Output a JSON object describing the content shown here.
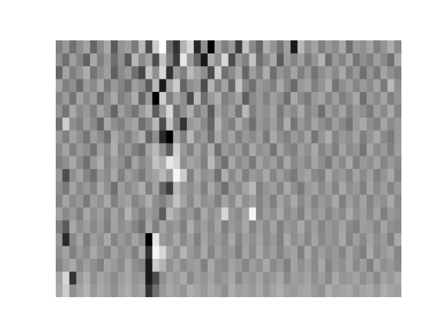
{
  "chart_data": {
    "type": "heatmap",
    "tick_labels": false,
    "grid": false,
    "cells": [
      [
        55,
        60,
        52,
        58,
        62,
        50,
        57,
        63,
        48,
        59,
        61,
        54,
        66,
        45,
        70,
        80,
        52,
        40,
        65,
        72,
        38,
        58,
        30,
        62,
        55,
        60,
        42,
        68,
        57,
        50,
        64,
        59,
        53,
        61,
        35,
        66,
        58,
        62,
        55,
        60,
        57,
        63,
        52,
        60,
        58,
        62,
        55,
        59,
        64,
        57
      ],
      [
        58,
        52,
        61,
        56,
        49,
        63,
        55,
        60,
        52,
        58,
        48,
        66,
        57,
        62,
        45,
        68,
        55,
        42,
        75,
        60,
        50,
        35,
        64,
        58,
        72,
        45,
        60,
        55,
        68,
        52,
        57,
        63,
        48,
        60,
        56,
        61,
        54,
        59,
        65,
        52,
        60,
        56,
        62,
        53,
        58,
        55,
        61,
        57,
        52,
        63
      ],
      [
        50,
        62,
        55,
        59,
        64,
        53,
        58,
        61,
        49,
        57,
        60,
        52,
        44,
        68,
        58,
        72,
        40,
        60,
        55,
        66,
        62,
        58,
        45,
        70,
        52,
        57,
        63,
        50,
        61,
        55,
        64,
        52,
        59,
        56,
        62,
        55,
        60,
        53,
        58,
        61,
        57,
        63,
        55,
        60,
        52,
        59,
        54,
        62,
        58,
        55
      ],
      [
        62,
        55,
        58,
        51,
        60,
        57,
        63,
        54,
        60,
        56,
        52,
        61,
        58,
        48,
        66,
        35,
        62,
        70,
        50,
        58,
        60,
        45,
        65,
        55,
        62,
        50,
        68,
        57,
        52,
        60,
        58,
        55,
        63,
        57,
        51,
        60,
        62,
        55,
        59,
        64,
        53,
        58,
        61,
        56,
        60,
        57,
        62,
        54,
        66,
        58
      ],
      [
        56,
        60,
        53,
        62,
        57,
        61,
        52,
        58,
        63,
        55,
        58,
        64,
        50,
        60,
        30,
        70,
        55,
        62,
        58,
        45,
        66,
        52,
        60,
        64,
        55,
        58,
        62,
        49,
        57,
        60,
        55,
        61,
        58,
        52,
        63,
        57,
        54,
        60,
        62,
        56,
        61,
        55,
        58,
        63,
        52,
        60,
        57,
        62,
        55,
        59
      ],
      [
        59,
        53,
        63,
        57,
        60,
        55,
        62,
        58,
        50,
        61,
        57,
        53,
        60,
        65,
        48,
        60,
        72,
        52,
        58,
        64,
        55,
        60,
        48,
        62,
        57,
        61,
        53,
        66,
        55,
        60,
        58,
        62,
        54,
        60,
        57,
        63,
        56,
        59,
        52,
        61,
        57,
        62,
        55,
        60,
        58,
        54,
        61,
        57,
        63,
        56
      ],
      [
        52,
        70,
        58,
        55,
        61,
        57,
        50,
        63,
        58,
        55,
        60,
        62,
        52,
        57,
        66,
        45,
        68,
        55,
        40,
        60,
        62,
        57,
        50,
        65,
        58,
        55,
        63,
        58,
        52,
        60,
        57,
        61,
        55,
        64,
        53,
        60,
        56,
        62,
        58,
        55,
        61,
        57,
        53,
        60,
        63,
        58,
        55,
        62,
        57,
        60
      ],
      [
        60,
        55,
        62,
        58,
        53,
        61,
        57,
        52,
        63,
        59,
        55,
        60,
        64,
        50,
        58,
        38,
        30,
        62,
        55,
        66,
        57,
        60,
        52,
        63,
        58,
        62,
        55,
        60,
        57,
        61,
        54,
        63,
        58,
        55,
        60,
        57,
        62,
        53,
        59,
        64,
        56,
        60,
        58,
        62,
        55,
        59,
        63,
        57,
        54,
        60
      ],
      [
        57,
        62,
        55,
        60,
        58,
        53,
        61,
        57,
        64,
        56,
        60,
        55,
        52,
        62,
        66,
        58,
        48,
        70,
        60,
        55,
        62,
        56,
        64,
        52,
        60,
        57,
        61,
        55,
        63,
        58,
        60,
        53,
        62,
        57,
        55,
        61,
        58,
        63,
        56,
        60,
        55,
        62,
        57,
        59,
        53,
        62,
        57,
        60,
        55,
        61
      ],
      [
        55,
        58,
        63,
        57,
        52,
        60,
        64,
        56,
        61,
        58,
        53,
        62,
        57,
        60,
        68,
        64,
        75,
        72,
        58,
        62,
        60,
        55,
        66,
        58,
        52,
        63,
        57,
        60,
        54,
        62,
        58,
        61,
        55,
        63,
        57,
        60,
        56,
        62,
        58,
        54,
        61,
        57,
        63,
        55,
        60,
        58,
        62,
        56,
        60,
        57
      ],
      [
        60,
        45,
        58,
        62,
        56,
        52,
        60,
        57,
        63,
        55,
        61,
        58,
        54,
        60,
        62,
        66,
        60,
        78,
        70,
        55,
        63,
        58,
        60,
        52,
        64,
        57,
        62,
        55,
        60,
        58,
        63,
        56,
        61,
        57,
        54,
        60,
        62,
        57,
        55,
        63,
        58,
        60,
        56,
        62,
        57,
        61,
        55,
        59,
        63,
        56
      ],
      [
        58,
        54,
        62,
        57,
        60,
        56,
        63,
        58,
        52,
        61,
        57,
        60,
        64,
        55,
        62,
        50,
        42,
        66,
        60,
        58,
        61,
        55,
        63,
        58,
        52,
        60,
        57,
        62,
        66,
        55,
        59,
        61,
        56,
        63,
        58,
        54,
        60,
        62,
        57,
        61,
        56,
        63,
        58,
        60,
        55,
        62,
        57,
        61,
        56,
        60
      ],
      [
        56,
        62,
        57,
        60,
        54,
        61,
        58,
        63,
        55,
        60,
        62,
        56,
        59,
        64,
        58,
        55,
        60,
        68,
        62,
        57,
        63,
        58,
        60,
        55,
        62,
        57,
        64,
        58,
        61,
        56,
        60,
        55,
        62,
        58,
        63,
        57,
        61,
        56,
        60,
        58,
        63,
        55,
        61,
        57,
        62,
        56,
        60,
        58,
        63,
        57
      ],
      [
        62,
        57,
        60,
        55,
        63,
        58,
        61,
        56,
        62,
        57,
        65,
        59,
        55,
        61,
        58,
        48,
        66,
        62,
        57,
        60,
        55,
        63,
        58,
        61,
        72,
        60,
        57,
        62,
        78,
        56,
        61,
        58,
        63,
        57,
        60,
        55,
        62,
        58,
        61,
        56,
        60,
        57,
        63,
        58,
        61,
        57,
        62,
        55,
        60,
        58
      ],
      [
        55,
        48,
        63,
        58,
        61,
        57,
        60,
        55,
        62,
        58,
        60,
        56,
        52,
        63,
        55,
        62,
        58,
        60,
        55,
        64,
        58,
        61,
        57,
        62,
        55,
        60,
        58,
        63,
        56,
        61,
        57,
        62,
        55,
        60,
        58,
        63,
        57,
        61,
        56,
        60,
        58,
        62,
        57,
        55,
        61,
        60,
        56,
        62,
        58,
        57
      ],
      [
        60,
        38,
        57,
        62,
        55,
        61,
        58,
        63,
        56,
        60,
        57,
        62,
        58,
        30,
        75,
        60,
        58,
        63,
        57,
        61,
        55,
        62,
        58,
        60,
        57,
        63,
        56,
        61,
        58,
        62,
        57,
        60,
        55,
        63,
        58,
        61,
        56,
        62,
        57,
        60,
        58,
        63,
        56,
        61,
        57,
        62,
        58,
        60,
        55,
        63
      ],
      [
        58,
        62,
        55,
        60,
        57,
        63,
        59,
        56,
        62,
        58,
        60,
        55,
        63,
        40,
        78,
        72,
        62,
        58,
        65,
        60,
        57,
        63,
        56,
        61,
        58,
        60,
        55,
        62,
        57,
        63,
        58,
        61,
        56,
        60,
        62,
        55,
        63,
        57,
        61,
        58,
        60,
        56,
        62,
        58,
        55,
        63,
        57,
        60,
        62,
        56
      ],
      [
        56,
        60,
        63,
        57,
        61,
        58,
        55,
        62,
        60,
        57,
        63,
        58,
        56,
        35,
        70,
        65,
        58,
        62,
        57,
        60,
        61,
        55,
        63,
        58,
        57,
        62,
        60,
        56,
        61,
        58,
        63,
        57,
        60,
        55,
        62,
        58,
        61,
        57,
        63,
        56,
        60,
        58,
        62,
        57,
        61,
        55,
        62,
        58,
        60,
        57
      ],
      [
        62,
        72,
        40,
        60,
        64,
        58,
        62,
        60,
        57,
        61,
        63,
        59,
        60,
        35,
        45,
        58,
        62,
        60,
        63,
        57,
        61,
        59,
        62,
        58,
        60,
        63,
        57,
        61,
        59,
        62,
        58,
        60,
        63,
        57,
        61,
        60,
        62,
        58,
        61,
        57,
        63,
        59,
        60,
        62,
        58,
        61,
        57,
        62,
        60,
        63
      ],
      [
        63,
        70,
        58,
        62,
        65,
        60,
        63,
        61,
        58,
        62,
        64,
        60,
        62,
        40,
        52,
        60,
        63,
        61,
        59,
        64,
        62,
        60,
        63,
        61,
        58,
        64,
        61,
        62,
        60,
        63,
        59,
        62,
        64,
        61,
        60,
        62,
        63,
        60,
        58,
        64,
        61,
        62,
        63,
        60,
        62,
        63,
        60,
        64,
        62,
        61
      ]
    ]
  }
}
